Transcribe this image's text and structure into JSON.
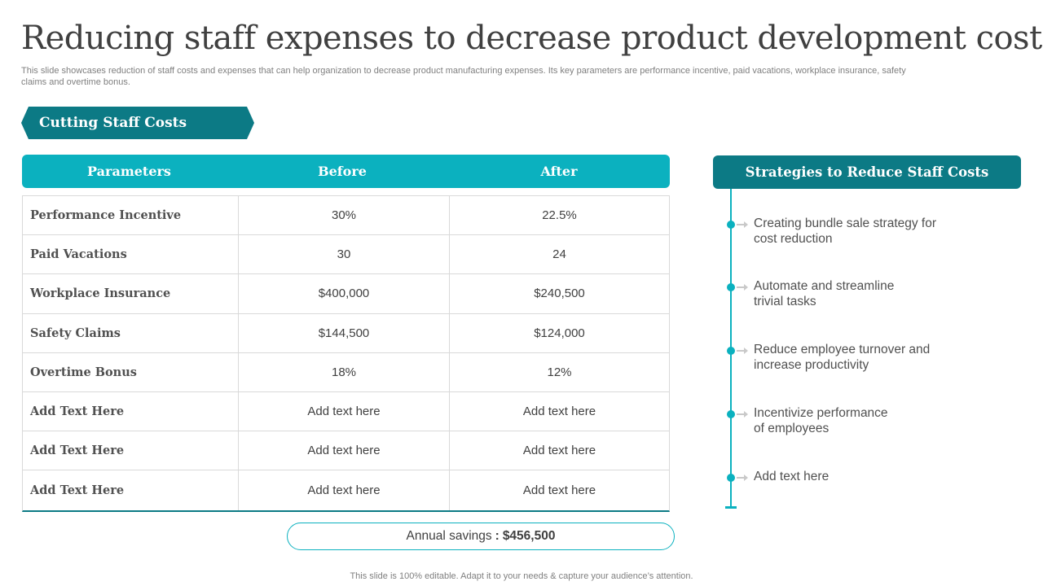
{
  "title": "Reducing staff expenses to decrease product development cost",
  "subtitle": "This slide showcases reduction of staff costs and expenses that can help organization to decrease product manufacturing expenses. Its key parameters are performance incentive, paid vacations, workplace insurance, safety claims and overtime bonus.",
  "section_tag": "Cutting Staff Costs",
  "table": {
    "headers": [
      "Parameters",
      "Before",
      "After"
    ],
    "rows": [
      [
        "Performance Incentive",
        "30%",
        "22.5%"
      ],
      [
        "Paid Vacations",
        "30",
        "24"
      ],
      [
        "Workplace Insurance",
        "$400,000",
        "$240,500"
      ],
      [
        "Safety Claims",
        "$144,500",
        "$124,000"
      ],
      [
        "Overtime Bonus",
        "18%",
        "12%"
      ],
      [
        "Add Text Here",
        "Add text here",
        "Add text here"
      ],
      [
        "Add Text Here",
        "Add text here",
        "Add text here"
      ],
      [
        "Add Text Here",
        "Add text here",
        "Add text here"
      ]
    ]
  },
  "savings": {
    "label": "Annual savings",
    "separator": ":",
    "value": "$456,500"
  },
  "strategies": {
    "header": "Strategies to Reduce Staff Costs",
    "items": [
      [
        "Creating bundle sale strategy for",
        "cost reduction"
      ],
      [
        "Automate and streamline",
        "trivial tasks"
      ],
      [
        "Reduce employee turnover and",
        "increase productivity"
      ],
      [
        "Incentivize performance",
        "of employees"
      ],
      [
        "Add text here",
        ""
      ]
    ]
  },
  "footer": "This slide is 100% editable. Adapt it to your needs & capture your audience’s attention.",
  "colors": {
    "teal_dark": "#0c7a85",
    "teal_light": "#0bb1bf",
    "text": "#404040"
  }
}
